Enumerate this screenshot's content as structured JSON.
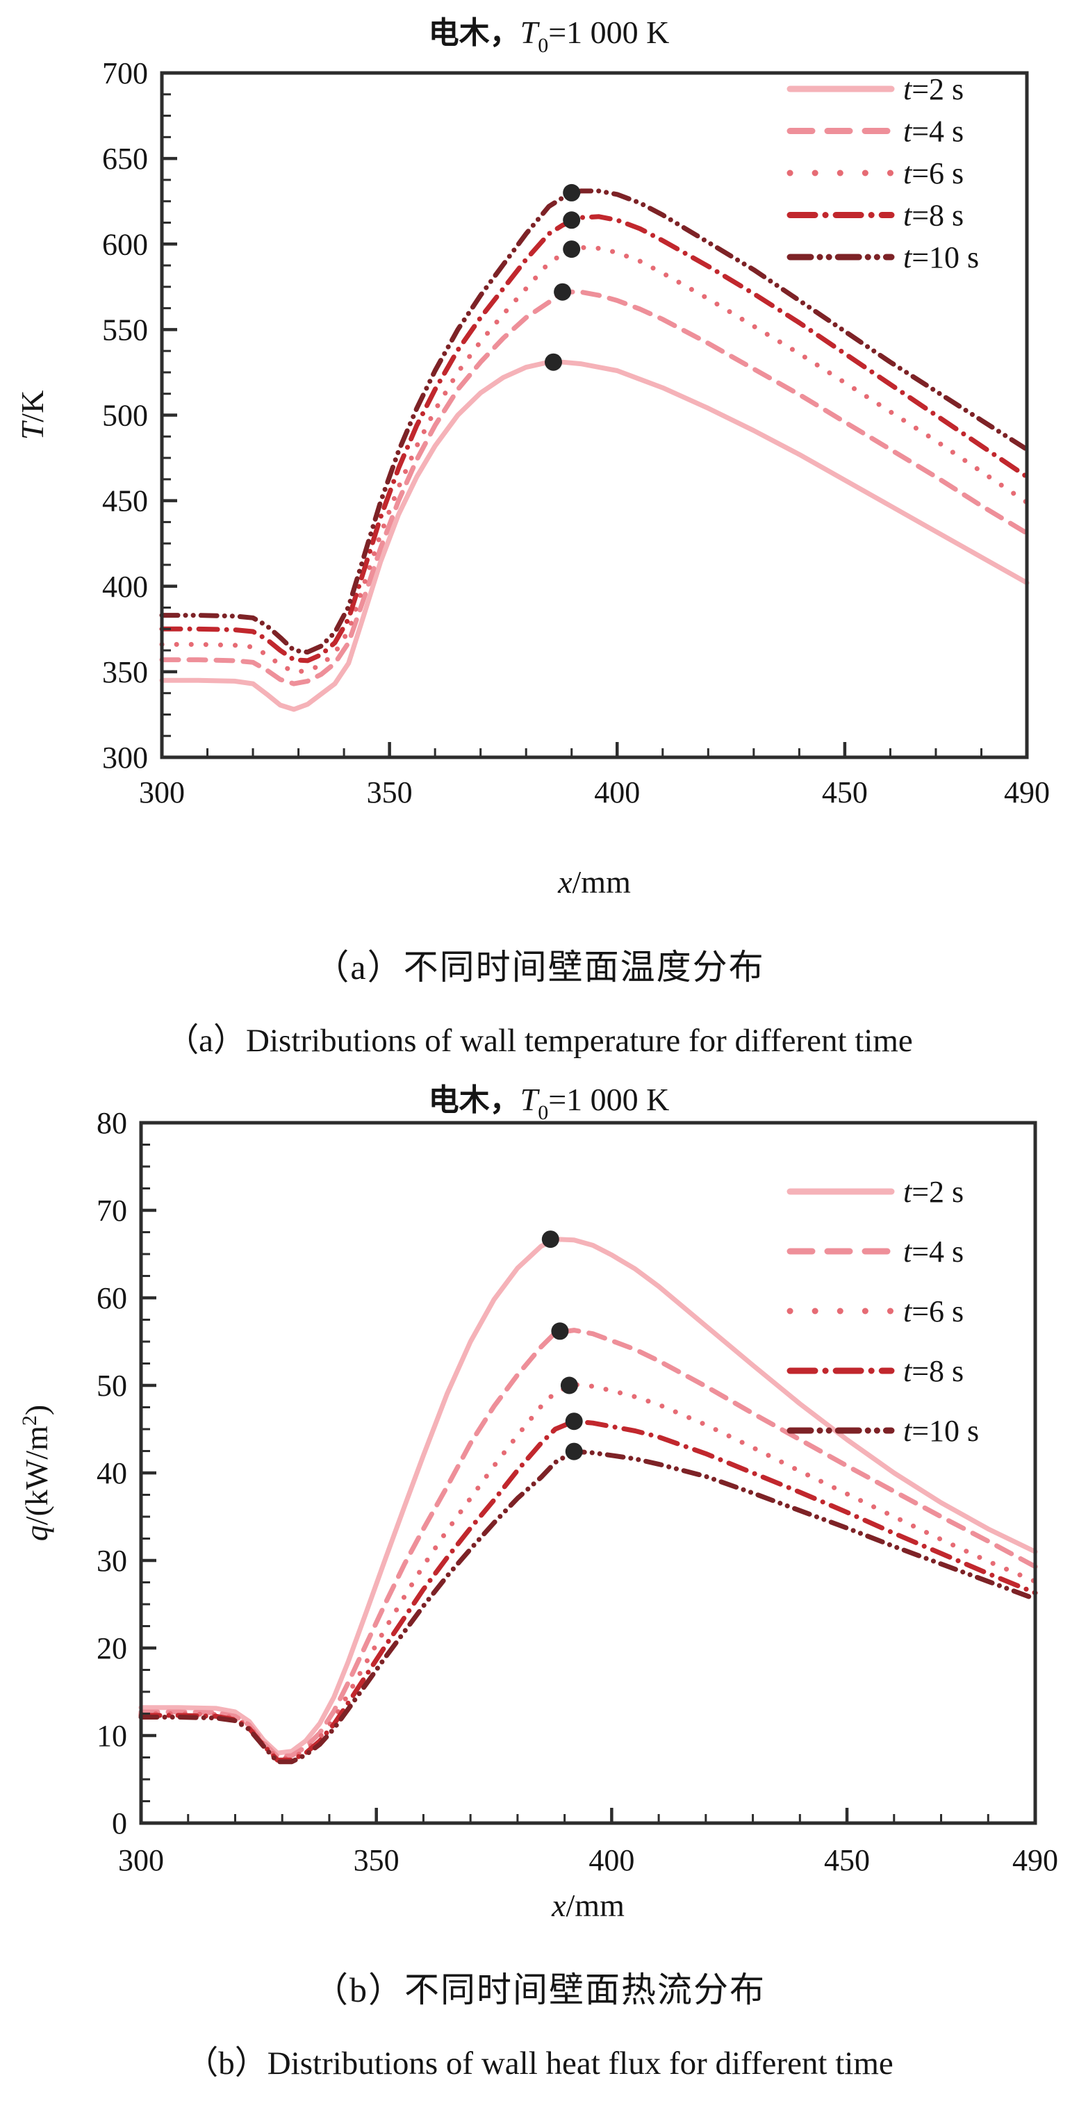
{
  "page": {
    "background": "#ffffff"
  },
  "figure": {
    "captions": {
      "a_zh": "（a）不同时间壁面温度分布",
      "a_en": "（a）Distributions of wall temperature for different time",
      "b_zh": "（b）不同时间壁面热流分布",
      "b_en": "（b）Distributions of wall heat flux for different time"
    }
  },
  "colors": {
    "t2": "#f5b2b8",
    "t4": "#ee8f99",
    "t6": "#e66b74",
    "t8": "#c1272d",
    "t10": "#7d2226",
    "marker": "#262626",
    "axis": "#2d2d2d",
    "text": "#151515"
  },
  "chart_data": [
    {
      "type": "line",
      "title": {
        "material": "电木，",
        "symbol": "T",
        "subscript": "0",
        "suffix": "=1 000 K"
      },
      "xlabel": {
        "symbol": "x",
        "rest": "/mm"
      },
      "ylabel": {
        "symbol": "T",
        "rest": "/K",
        "sup": ""
      },
      "xlim": [
        300,
        490
      ],
      "ylim": [
        300,
        700
      ],
      "x_ticks": [
        300,
        350,
        400,
        450,
        490
      ],
      "x_minor_step": 10,
      "y_ticks": [
        300,
        350,
        400,
        450,
        500,
        550,
        600,
        650,
        700
      ],
      "y_minor_divisions": 4,
      "grid": false,
      "legend_position": "top-right-inside",
      "x": [
        300,
        308,
        316,
        320,
        323,
        326,
        329,
        332,
        335,
        338,
        341,
        344,
        348,
        352,
        356,
        360,
        365,
        370,
        375,
        380,
        385,
        388,
        392,
        396,
        400,
        405,
        410,
        420,
        430,
        440,
        450,
        460,
        470,
        480,
        490
      ],
      "series": [
        {
          "name": "t=2 s",
          "label_pre": "t",
          "label_post": "=2 s",
          "style": "solid",
          "color": "#f5b2b8",
          "values": [
            345,
            345,
            344.5,
            343,
            337,
            330.5,
            328,
            331,
            337,
            343,
            355,
            380,
            414,
            442,
            464,
            482,
            500,
            513,
            522,
            528,
            531,
            531,
            530,
            528,
            526,
            521,
            516,
            504,
            491,
            477,
            462,
            447,
            432,
            417,
            402
          ],
          "marker": [
            386,
            531
          ]
        },
        {
          "name": "t=4 s",
          "label_pre": "t",
          "label_post": "=4 s",
          "style": "dashed",
          "color": "#ee8f99",
          "values": [
            357,
            357,
            356.5,
            355.5,
            351,
            345.5,
            343,
            344.5,
            348.5,
            355,
            367,
            390,
            422,
            450,
            474,
            494,
            515,
            531,
            545,
            557,
            566,
            572,
            572,
            570,
            567,
            562,
            556,
            542,
            527,
            512,
            496,
            480,
            464,
            447,
            431
          ],
          "marker": [
            388,
            572
          ]
        },
        {
          "name": "t=6 s",
          "label_pre": "t",
          "label_post": "=6 s",
          "style": "dotted",
          "color": "#e66b74",
          "values": [
            366,
            366,
            365.5,
            364.5,
            360,
            354,
            350,
            350.5,
            354,
            361,
            374,
            398,
            430,
            458,
            482,
            503,
            525,
            543,
            559,
            574,
            589,
            594,
            598,
            597.5,
            595,
            590,
            583,
            568,
            552,
            536,
            519,
            502,
            485,
            467,
            449
          ],
          "marker": [
            390,
            597
          ]
        },
        {
          "name": "t=8 s",
          "label_pre": "t",
          "label_post": "=8 s",
          "style": "dash-dot",
          "color": "#c1272d",
          "values": [
            375,
            375,
            374.5,
            373.5,
            369,
            362.5,
            357,
            356.5,
            360,
            367,
            381,
            406,
            440,
            469,
            494,
            515,
            538,
            557,
            574,
            591,
            606,
            611,
            615.5,
            616,
            614,
            609,
            602,
            587,
            571,
            554,
            536,
            518,
            500,
            482,
            464
          ],
          "marker": [
            390,
            614
          ]
        },
        {
          "name": "t=10 s",
          "label_pre": "t",
          "label_post": "=10 s",
          "style": "dash-dot-dot",
          "color": "#7d2226",
          "values": [
            383,
            383,
            382.5,
            381.5,
            377,
            370,
            362.5,
            361.5,
            365,
            373,
            388,
            414,
            449,
            479,
            504,
            526,
            550,
            570,
            588,
            606,
            622,
            627,
            631,
            631,
            629,
            624,
            617,
            601,
            585,
            567,
            549,
            531,
            514,
            497,
            480
          ],
          "marker": [
            390,
            630
          ]
        }
      ]
    },
    {
      "type": "line",
      "title": {
        "material": "电木，",
        "symbol": "T",
        "subscript": "0",
        "suffix": "=1 000 K"
      },
      "xlabel": {
        "symbol": "x",
        "rest": "/mm"
      },
      "ylabel": {
        "symbol": "q",
        "rest": "/(kW/m",
        "sup": "2",
        "close": ")"
      },
      "xlim": [
        300,
        490
      ],
      "ylim": [
        0,
        80
      ],
      "x_ticks": [
        300,
        350,
        400,
        450,
        490
      ],
      "x_minor_step": 10,
      "y_ticks": [
        0,
        10,
        20,
        30,
        40,
        50,
        60,
        70,
        80
      ],
      "y_minor_divisions": 4,
      "grid": false,
      "legend_position": "top-right-inside",
      "x": [
        300,
        308,
        316,
        320,
        323,
        326,
        329,
        332,
        335,
        338,
        341,
        344,
        348,
        352,
        356,
        360,
        365,
        370,
        375,
        380,
        385,
        388,
        392,
        396,
        400,
        405,
        410,
        420,
        430,
        440,
        450,
        460,
        470,
        480,
        490
      ],
      "series": [
        {
          "name": "t=2 s",
          "label_pre": "t",
          "label_post": "=2 s",
          "style": "solid",
          "color": "#f5b2b8",
          "values": [
            13.2,
            13.2,
            13.1,
            12.7,
            11.6,
            9.5,
            8.0,
            8.2,
            9.4,
            11.4,
            14.4,
            18.4,
            24.3,
            30.3,
            36.2,
            42.0,
            49.0,
            55.0,
            59.8,
            63.4,
            65.9,
            66.7,
            66.6,
            66.0,
            64.9,
            63.3,
            61.3,
            56.8,
            52.3,
            47.9,
            43.8,
            40.0,
            36.6,
            33.6,
            31.0
          ],
          "marker": [
            387,
            66.7
          ]
        },
        {
          "name": "t=4 s",
          "label_pre": "t",
          "label_post": "=4 s",
          "style": "dashed",
          "color": "#ee8f99",
          "values": [
            12.7,
            12.7,
            12.6,
            12.2,
            11.2,
            9.2,
            7.6,
            7.7,
            8.7,
            10.3,
            12.8,
            16.0,
            20.6,
            25.2,
            29.6,
            33.6,
            38.4,
            43.4,
            47.6,
            51.2,
            54.4,
            56.0,
            56.3,
            55.9,
            55.1,
            54.1,
            52.8,
            49.9,
            46.8,
            43.8,
            40.8,
            37.9,
            35.0,
            32.2,
            29.3
          ],
          "marker": [
            389,
            56.2
          ]
        },
        {
          "name": "t=6 s",
          "label_pre": "t",
          "label_post": "=6 s",
          "style": "dotted",
          "color": "#e66b74",
          "values": [
            12.5,
            12.5,
            12.4,
            12.0,
            11.0,
            9.0,
            7.4,
            7.4,
            8.3,
            9.8,
            11.9,
            14.7,
            18.5,
            22.3,
            25.9,
            29.4,
            33.4,
            37.1,
            40.8,
            44.3,
            47.6,
            49.2,
            50.1,
            49.9,
            49.4,
            48.7,
            47.8,
            45.5,
            42.9,
            40.2,
            37.6,
            35.0,
            32.4,
            29.9,
            27.6
          ],
          "marker": [
            391,
            50.0
          ]
        },
        {
          "name": "t=8 s",
          "label_pre": "t",
          "label_post": "=8 s",
          "style": "dash-dot",
          "color": "#c1272d",
          "values": [
            12.3,
            12.3,
            12.2,
            11.8,
            10.8,
            8.9,
            7.2,
            7.2,
            8.0,
            9.4,
            11.3,
            13.7,
            17.0,
            20.3,
            23.5,
            26.7,
            30.3,
            33.7,
            36.9,
            40.3,
            43.4,
            45.0,
            45.9,
            45.7,
            45.3,
            44.8,
            44.1,
            42.2,
            40.0,
            37.8,
            35.5,
            33.1,
            30.8,
            28.5,
            26.3
          ],
          "marker": [
            392,
            45.9
          ]
        },
        {
          "name": "t=10 s",
          "label_pre": "t",
          "label_post": "=10 s",
          "style": "dash-dot-dot",
          "color": "#7d2226",
          "values": [
            12.1,
            12.1,
            12.0,
            11.7,
            10.7,
            8.8,
            7.0,
            7.0,
            7.8,
            9.0,
            10.8,
            13.0,
            16.0,
            19.0,
            21.9,
            24.8,
            28.2,
            31.3,
            34.3,
            37.1,
            39.5,
            41.2,
            42.45,
            42.3,
            42.0,
            41.6,
            41.0,
            39.6,
            37.7,
            35.7,
            33.7,
            31.6,
            29.6,
            27.6,
            25.6
          ],
          "marker": [
            392,
            42.45
          ]
        }
      ]
    }
  ]
}
